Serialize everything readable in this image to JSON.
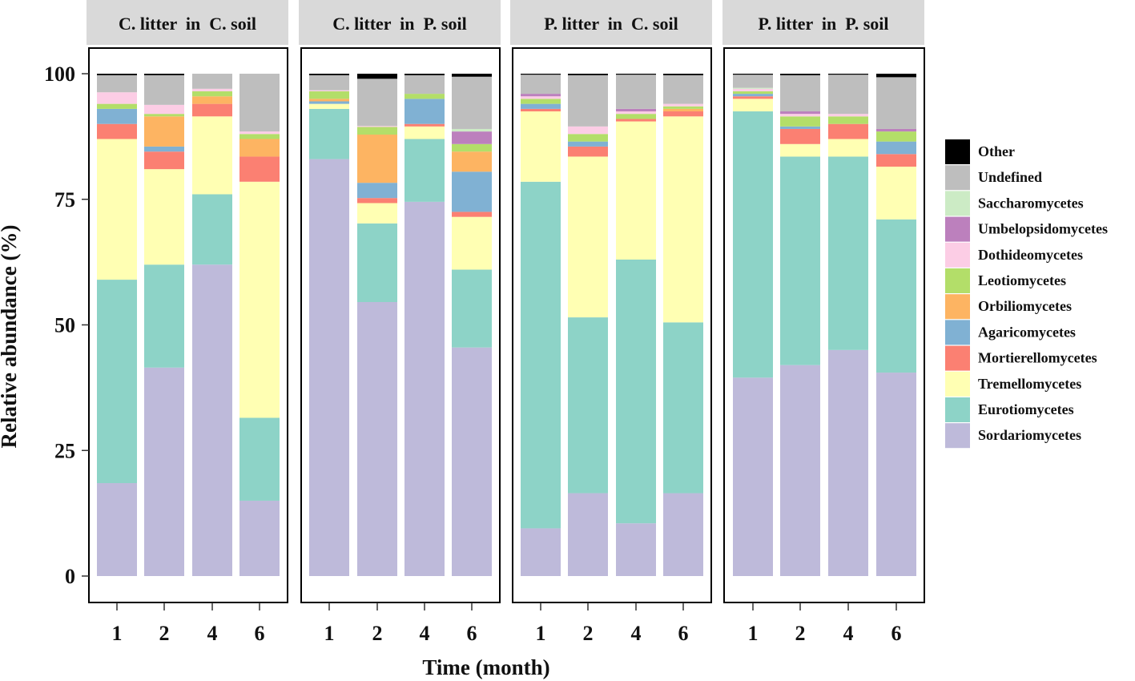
{
  "chart_data": {
    "type": "stacked-bar",
    "ylabel": "Relative abundance (%)",
    "xlabel": "Time (month)",
    "ylim": [
      0,
      100
    ],
    "yticks": [
      0,
      25,
      50,
      75,
      100
    ],
    "categories": [
      "1",
      "2",
      "4",
      "6"
    ],
    "legend_position": "right",
    "taxa": [
      "Sordariomycetes",
      "Eurotiomycetes",
      "Tremellomycetes",
      "Mortierellomycetes",
      "Agaricomycetes",
      "Orbiliomycetes",
      "Leotiomycetes",
      "Dothideomycetes",
      "Umbelopsidomycetes",
      "Saccharomycetes",
      "Undefined",
      "Other"
    ],
    "legend_order": [
      "Other",
      "Undefined",
      "Saccharomycetes",
      "Umbelopsidomycetes",
      "Dothideomycetes",
      "Leotiomycetes",
      "Orbiliomycetes",
      "Agaricomycetes",
      "Mortierellomycetes",
      "Tremellomycetes",
      "Eurotiomycetes",
      "Sordariomycetes"
    ],
    "colors": {
      "Other": "#000000",
      "Undefined": "#bebebe",
      "Saccharomycetes": "#ccebc5",
      "Umbelopsidomycetes": "#bc80bd",
      "Dothideomycetes": "#fccde5",
      "Leotiomycetes": "#b3de69",
      "Orbiliomycetes": "#fdb462",
      "Agaricomycetes": "#80b1d3",
      "Mortierellomycetes": "#fb8072",
      "Tremellomycetes": "#ffffb3",
      "Eurotiomycetes": "#8dd3c7",
      "Sordariomycetes": "#bebada"
    },
    "panels": [
      {
        "title": "C. litter  in  C. soil",
        "bars": [
          {
            "x": "1",
            "values": [
              18.5,
              40.5,
              28.0,
              3.0,
              3.0,
              0.0,
              1.0,
              2.3,
              0.0,
              0.0,
              3.4,
              0.3
            ]
          },
          {
            "x": "2",
            "values": [
              41.5,
              20.5,
              19.0,
              3.5,
              1.0,
              6.0,
              0.5,
              1.8,
              0.0,
              0.0,
              5.9,
              0.3
            ]
          },
          {
            "x": "4",
            "values": [
              62.0,
              14.0,
              15.5,
              2.5,
              0.0,
              1.5,
              1.0,
              0.5,
              0.0,
              0.0,
              3.0,
              0.0
            ]
          },
          {
            "x": "6",
            "values": [
              15.0,
              16.5,
              47.0,
              5.0,
              0.0,
              3.5,
              1.0,
              0.5,
              0.0,
              0.0,
              11.5,
              0.0
            ]
          }
        ]
      },
      {
        "title": "C. litter  in  P. soil",
        "bars": [
          {
            "x": "1",
            "values": [
              83.0,
              10.0,
              1.0,
              0.0,
              0.5,
              0.5,
              1.5,
              0.2,
              0.0,
              0.0,
              3.0,
              0.3
            ]
          },
          {
            "x": "2",
            "values": [
              54.0,
              15.5,
              4.0,
              1.0,
              3.0,
              9.5,
              1.5,
              0.2,
              0.0,
              0.0,
              9.3,
              1.0
            ]
          },
          {
            "x": "4",
            "values": [
              74.5,
              12.5,
              2.5,
              0.5,
              5.0,
              0.0,
              1.0,
              0.0,
              0.0,
              0.0,
              3.7,
              0.3
            ]
          },
          {
            "x": "6",
            "values": [
              45.5,
              15.5,
              10.5,
              1.0,
              8.0,
              4.0,
              1.5,
              0.0,
              2.5,
              0.5,
              10.4,
              0.6
            ]
          }
        ]
      },
      {
        "title": "P. litter  in  C. soil",
        "bars": [
          {
            "x": "1",
            "values": [
              9.5,
              69.0,
              14.0,
              0.5,
              1.0,
              0.0,
              1.0,
              0.5,
              0.5,
              0.0,
              3.8,
              0.2
            ]
          },
          {
            "x": "2",
            "values": [
              16.5,
              35.0,
              32.0,
              2.0,
              1.0,
              0.0,
              1.5,
              1.5,
              0.0,
              0.0,
              10.2,
              0.3
            ]
          },
          {
            "x": "4",
            "values": [
              10.5,
              52.5,
              27.5,
              0.5,
              0.0,
              0.0,
              1.0,
              0.5,
              0.5,
              0.0,
              6.8,
              0.2
            ]
          },
          {
            "x": "6",
            "values": [
              16.5,
              34.0,
              41.0,
              1.0,
              0.0,
              0.5,
              0.5,
              0.5,
              0.0,
              0.0,
              5.7,
              0.3
            ]
          }
        ]
      },
      {
        "title": "P. litter  in  P. soil",
        "bars": [
          {
            "x": "1",
            "values": [
              39.5,
              53.0,
              2.5,
              0.5,
              0.5,
              0.0,
              0.5,
              0.5,
              0.0,
              0.2,
              2.6,
              0.2
            ]
          },
          {
            "x": "2",
            "values": [
              42.0,
              41.5,
              2.5,
              3.0,
              0.5,
              0.0,
              2.0,
              0.5,
              0.5,
              0.0,
              7.2,
              0.3
            ]
          },
          {
            "x": "4",
            "values": [
              45.0,
              38.5,
              3.5,
              3.0,
              0.0,
              0.0,
              1.5,
              0.5,
              0.0,
              0.0,
              7.8,
              0.2
            ]
          },
          {
            "x": "6",
            "values": [
              40.5,
              30.5,
              10.5,
              2.5,
              2.5,
              0.0,
              2.0,
              0.0,
              0.5,
              0.0,
              10.3,
              0.7
            ]
          }
        ]
      }
    ]
  }
}
